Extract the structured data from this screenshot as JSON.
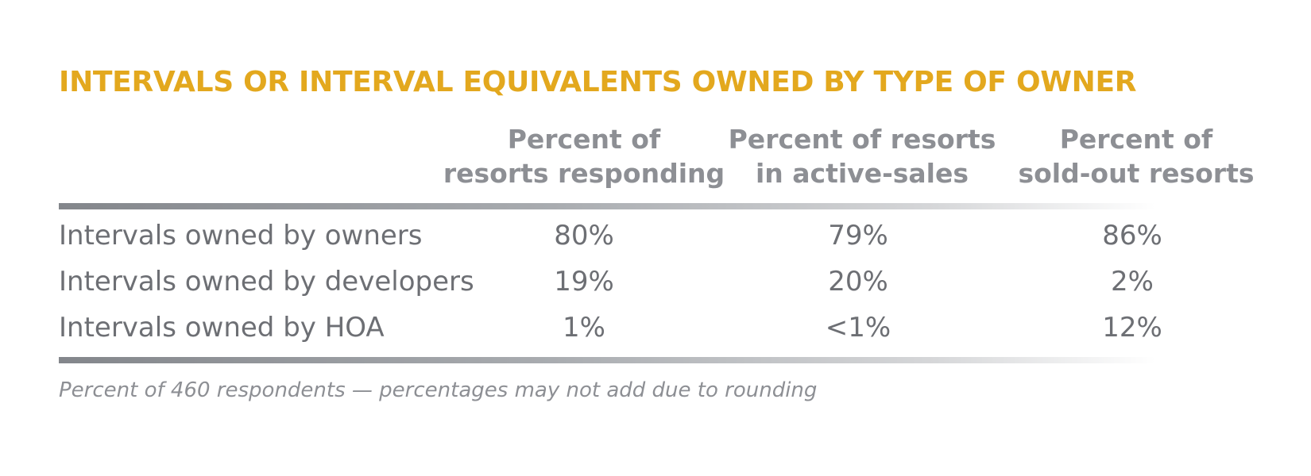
{
  "colors": {
    "title": "#e3a81e",
    "header_text": "#8d8f94",
    "body_text": "#6d6f74",
    "rule": "#83868b"
  },
  "chart_data": {
    "type": "table",
    "title": "INTERVALS OR INTERVAL EQUIVALENTS OWNED BY TYPE OF OWNER",
    "columns": [
      {
        "line1": "Percent of",
        "line2": "resorts responding"
      },
      {
        "line1": "Percent of resorts",
        "line2": "in active-sales"
      },
      {
        "line1": "Percent of",
        "line2": "sold-out resorts"
      }
    ],
    "rows": [
      {
        "label": "Intervals owned by owners",
        "values": [
          "80%",
          "79%",
          "86%"
        ]
      },
      {
        "label": "Intervals owned by developers",
        "values": [
          "19%",
          "20%",
          "2%"
        ]
      },
      {
        "label": "Intervals owned by HOA",
        "values": [
          "1%",
          "<1%",
          "12%"
        ]
      }
    ],
    "footnote": "Percent of 460 respondents — percentages may not add due to rounding"
  }
}
